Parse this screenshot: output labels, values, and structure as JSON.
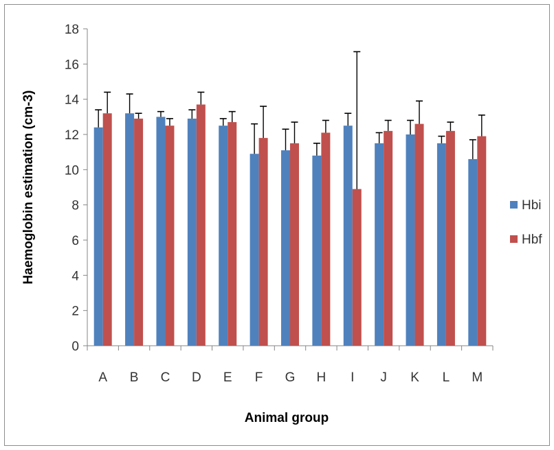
{
  "chart_data": {
    "type": "bar",
    "title": "",
    "xlabel": "Animal group",
    "ylabel": "Haemoglobin estimation  (cm-3)",
    "categories": [
      "A",
      "B",
      "C",
      "D",
      "E",
      "F",
      "G",
      "H",
      "I",
      "J",
      "K",
      "L",
      "M"
    ],
    "ylim": [
      0,
      18
    ],
    "yticks": [
      0,
      2,
      4,
      6,
      8,
      10,
      12,
      14,
      16,
      18
    ],
    "grid": false,
    "legend_position": "right",
    "series": [
      {
        "name": "Hbi",
        "color": "#4f81bd",
        "values": [
          12.4,
          13.2,
          13.0,
          12.9,
          12.5,
          10.9,
          11.1,
          10.8,
          12.5,
          11.5,
          12.0,
          11.5,
          10.6
        ],
        "error": [
          1.0,
          1.1,
          0.3,
          0.5,
          0.4,
          1.7,
          1.2,
          0.7,
          0.7,
          0.6,
          0.8,
          0.4,
          1.1
        ]
      },
      {
        "name": "Hbf",
        "color": "#c0504d",
        "values": [
          13.2,
          12.9,
          12.5,
          13.7,
          12.7,
          11.8,
          11.5,
          12.1,
          8.9,
          12.2,
          12.6,
          12.2,
          11.9
        ],
        "error": [
          1.2,
          0.3,
          0.4,
          0.7,
          0.6,
          1.8,
          1.2,
          0.7,
          7.8,
          0.6,
          1.3,
          0.5,
          1.2
        ]
      }
    ]
  }
}
